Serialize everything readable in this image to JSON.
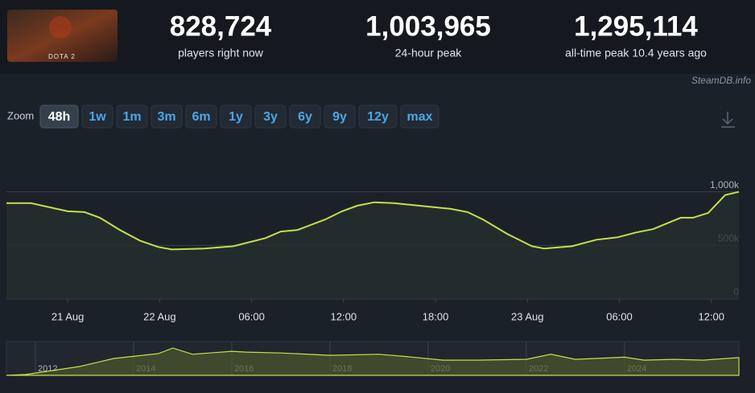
{
  "header": {
    "logo_text": "DOTA 2",
    "stats": [
      {
        "value": "828,724",
        "label": "players right now"
      },
      {
        "value": "1,003,965",
        "label": "24-hour peak"
      },
      {
        "value": "1,295,114",
        "label": "all-time peak 10.4 years ago"
      }
    ]
  },
  "watermark": "SteamDB.info",
  "zoom": {
    "label": "Zoom",
    "options": [
      "48h",
      "1w",
      "1m",
      "3m",
      "6m",
      "1y",
      "3y",
      "6y",
      "9y",
      "12y",
      "max"
    ],
    "active_index": 0
  },
  "chart_data": [
    {
      "type": "line",
      "color": "#c6e04a",
      "grid": true,
      "x": [
        14.0,
        15.6,
        18.0,
        19.1,
        20.1,
        21.4,
        22.7,
        23.9,
        24.8,
        26.9,
        28.8,
        30.9,
        31.9,
        33.0,
        34.8,
        35.9,
        36.9,
        38.0,
        39.3,
        40.9,
        43.0,
        44.1,
        45.1,
        46.7,
        48.3,
        49.1,
        50.9,
        52.5,
        53.9,
        55.1,
        56.2,
        58.0,
        58.8,
        59.8,
        60.9,
        61.8
      ],
      "values": [
        894000,
        894000,
        818000,
        811000,
        758000,
        644000,
        545000,
        485000,
        462000,
        470000,
        492000,
        568000,
        629000,
        644000,
        742000,
        818000,
        871000,
        902000,
        894000,
        871000,
        841000,
        811000,
        742000,
        606000,
        492000,
        470000,
        492000,
        553000,
        576000,
        621000,
        652000,
        758000,
        758000,
        803000,
        970000,
        1000000
      ],
      "xlim": [
        14,
        61.8
      ],
      "xticks": [
        {
          "value": 18,
          "label": "21 Aug"
        },
        {
          "value": 24,
          "label": "22 Aug"
        },
        {
          "value": 30,
          "label": "06:00"
        },
        {
          "value": 36,
          "label": "12:00"
        },
        {
          "value": 42,
          "label": "18:00"
        },
        {
          "value": 48,
          "label": "23 Aug"
        },
        {
          "value": 54,
          "label": "06:00"
        },
        {
          "value": 60,
          "label": "12:00"
        }
      ],
      "ylim": [
        0,
        1500000
      ],
      "yticks": [
        0,
        {
          "value": 500000,
          "label": "500k"
        },
        {
          "value": 1000000,
          "label": "1,000k"
        }
      ]
    },
    {
      "type": "area",
      "color": "#c6e04a",
      "x": [
        2011.41,
        2011.8,
        2012.9,
        2013.6,
        2014.5,
        2014.8,
        2015.2,
        2016.0,
        2016.3,
        2017.0,
        2018.0,
        2019.0,
        2019.6,
        2020.3,
        2021.0,
        2022.0,
        2022.5,
        2023.0,
        2024.0,
        2024.4,
        2025.0,
        2025.6,
        2026.33
      ],
      "values": [
        0,
        38000,
        420000,
        800000,
        1030000,
        1290000,
        1000000,
        1140000,
        1100000,
        1060000,
        950000,
        1000000,
        880000,
        720000,
        720000,
        760000,
        1000000,
        760000,
        860000,
        720000,
        760000,
        720000,
        840000
      ],
      "xlim": [
        2011.41,
        2026.33
      ],
      "xticks": [
        2012,
        2014,
        2016,
        2018,
        2020,
        2022,
        2024
      ],
      "ylim": [
        0,
        1600000
      ]
    }
  ]
}
